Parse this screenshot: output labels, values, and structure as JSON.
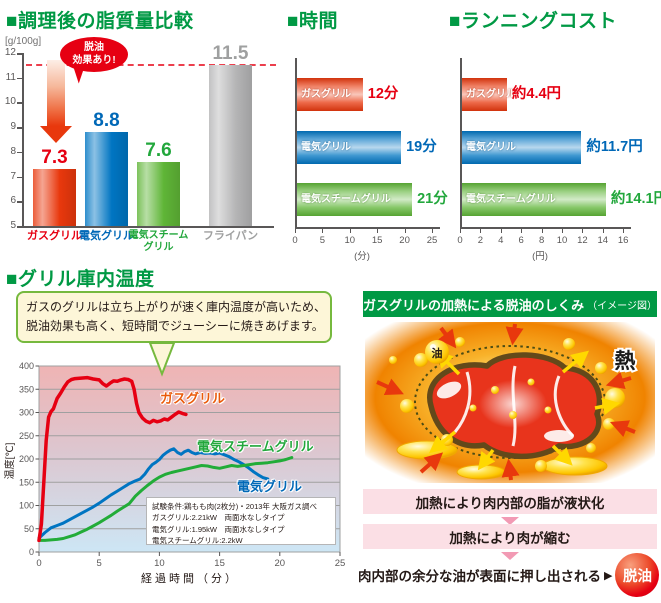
{
  "headers": {
    "fat": "■調理後の脂質量比較",
    "time": "■時間",
    "cost": "■ランニングコスト",
    "temp": "■グリル庫内温度"
  },
  "palette": {
    "title_green": "#009944",
    "red": "#e8380d",
    "blue": "#0075c2",
    "green": "#5fb537",
    "gray": "#b5b5b6",
    "axis_gray": "#595757",
    "step_row_pink": "#fbdfe5",
    "callout_bg": "#fdf6d8",
    "callout_border": "#76b93e"
  },
  "callout": {
    "line1": "ガスのグリルは立ち上がりが速く庫内温度が高いため、",
    "line2": "脱油効果も高く、短時間でジューシーに焼きあげます。"
  },
  "mechanism": {
    "title": "ガスグリルの加熱による脱油のしくみ",
    "title_note": "（イメージ図）",
    "oil_label": "油",
    "heat_label": "熱",
    "step1": "加熱により肉内部の脂が液状化",
    "step2": "加熱により肉が縮む",
    "step3": "肉内部の余分な油が表面に押し出される",
    "arrow_glyph": "▶",
    "result": "脱油"
  },
  "chart_data": [
    {
      "id": "fat",
      "type": "bar",
      "title": "調理後の脂質量比較",
      "unit": "[g/100g]",
      "categories": [
        "ガスグリル",
        "電気グリル",
        "電気スチームグリル",
        "フライパン"
      ],
      "display_categories": [
        "ガスグリル",
        "電気グリル",
        "電気スチーム\nグリル",
        "フライパン"
      ],
      "values": [
        7.3,
        8.8,
        7.6,
        11.5
      ],
      "bar_colors": [
        "#e8380d",
        "#0075c2",
        "#5fb537",
        "#b5b5b6"
      ],
      "text_colors": [
        "#e60012",
        "#0068b7",
        "#22a73c",
        "#9fa0a0"
      ],
      "ylim": [
        5,
        12
      ],
      "yticks": [
        5,
        6,
        7,
        8,
        9,
        10,
        11,
        12
      ],
      "dashed_line_at": 11.5,
      "badge_line1": "脱油",
      "badge_line2": "効果あり!"
    },
    {
      "id": "time",
      "type": "bar-horizontal",
      "title": "時間",
      "categories": [
        "ガスグリル",
        "電気グリル",
        "電気スチームグリル"
      ],
      "values": [
        12,
        19,
        21
      ],
      "value_labels": [
        "12分",
        "19分",
        "21分"
      ],
      "bar_colors": [
        "#e8380d",
        "#0075c2",
        "#5fb537"
      ],
      "text_colors": [
        "#e60012",
        "#0068b7",
        "#22a73c"
      ],
      "xlim": [
        0,
        25
      ],
      "xticks": [
        0,
        5,
        10,
        15,
        20,
        25
      ],
      "xlabel": "(分)"
    },
    {
      "id": "cost",
      "type": "bar-horizontal",
      "title": "ランニングコスト",
      "categories": [
        "ガスグリル",
        "電気グリル",
        "電気スチームグリル"
      ],
      "values": [
        4.4,
        11.7,
        14.1
      ],
      "value_labels": [
        "約4.4円",
        "約11.7円",
        "約14.1円"
      ],
      "bar_colors": [
        "#e8380d",
        "#0075c2",
        "#5fb537"
      ],
      "text_colors": [
        "#e60012",
        "#0068b7",
        "#22a73c"
      ],
      "xlim": [
        0,
        16
      ],
      "xticks": [
        0,
        2,
        4,
        6,
        8,
        10,
        12,
        14,
        16
      ],
      "xlabel": "(円)"
    },
    {
      "id": "temp",
      "type": "line",
      "title": "グリル庫内温度",
      "ylabel": "温度[℃]",
      "xlabel": "経過時間（分）",
      "xlim": [
        0,
        25
      ],
      "ylim": [
        0,
        400
      ],
      "xticks": [
        0,
        5,
        10,
        15,
        20,
        25
      ],
      "yticks": [
        0,
        50,
        100,
        150,
        200,
        250,
        300,
        350,
        400
      ],
      "note_lines": [
        "試験条件:鶏もも肉(2枚分)・2013年 大阪ガス調べ",
        "ガスグリル:2.21kW　両面水なしタイプ",
        "電気グリル:1.95kW　両面水なしタイプ",
        "電気スチームグリル:2.2kW"
      ],
      "series": [
        {
          "name": "ガスグリル",
          "color": "#e60012",
          "label_color": "#ea5a0b",
          "points": [
            [
              0,
              25
            ],
            [
              0.2,
              60
            ],
            [
              0.4,
              150
            ],
            [
              0.6,
              240
            ],
            [
              0.8,
              290
            ],
            [
              1,
              302
            ],
            [
              1.2,
              308
            ],
            [
              1.5,
              330
            ],
            [
              1.8,
              342
            ],
            [
              2.1,
              355
            ],
            [
              2.4,
              366
            ],
            [
              2.7,
              371
            ],
            [
              3,
              373
            ],
            [
              3.5,
              374
            ],
            [
              4,
              375
            ],
            [
              4.5,
              372
            ],
            [
              5,
              370
            ],
            [
              5.3,
              362
            ],
            [
              5.6,
              357
            ],
            [
              5.9,
              363
            ],
            [
              6.2,
              368
            ],
            [
              6.5,
              367
            ],
            [
              6.8,
              370
            ],
            [
              7.1,
              372
            ],
            [
              7.4,
              371
            ],
            [
              7.7,
              367
            ],
            [
              7.9,
              350
            ],
            [
              8.1,
              320
            ],
            [
              8.3,
              300
            ],
            [
              8.6,
              288
            ],
            [
              8.9,
              281
            ],
            [
              9.2,
              278
            ],
            [
              9.5,
              283
            ],
            [
              9.8,
              280
            ],
            [
              10.1,
              282
            ],
            [
              10.4,
              286
            ],
            [
              10.7,
              284
            ],
            [
              11,
              290
            ],
            [
              11.3,
              296
            ],
            [
              11.6,
              301
            ],
            [
              11.9,
              298
            ],
            [
              12.2,
              296
            ]
          ]
        },
        {
          "name": "電気グリル",
          "color": "#0075c2",
          "label_color": "#0068b7",
          "points": [
            [
              0,
              30
            ],
            [
              0.5,
              42
            ],
            [
              1,
              52
            ],
            [
              1.5,
              57
            ],
            [
              2,
              62
            ],
            [
              2.5,
              69
            ],
            [
              3,
              76
            ],
            [
              3.5,
              83
            ],
            [
              4,
              90
            ],
            [
              4.5,
              97
            ],
            [
              5,
              105
            ],
            [
              5.5,
              114
            ],
            [
              6,
              123
            ],
            [
              6.5,
              131
            ],
            [
              7,
              139
            ],
            [
              7.5,
              147
            ],
            [
              8,
              153
            ],
            [
              8.4,
              157
            ],
            [
              8.8,
              168
            ],
            [
              9.1,
              179
            ],
            [
              9.4,
              188
            ],
            [
              9.7,
              193
            ],
            [
              10,
              199
            ],
            [
              10.3,
              208
            ],
            [
              10.6,
              214
            ],
            [
              10.9,
              219
            ],
            [
              11.2,
              222
            ],
            [
              11.5,
              214
            ],
            [
              11.8,
              210
            ],
            [
              12.1,
              216
            ],
            [
              12.4,
              219
            ],
            [
              12.7,
              214
            ],
            [
              13,
              211
            ],
            [
              13.4,
              214
            ],
            [
              13.8,
              212
            ],
            [
              14.2,
              213
            ],
            [
              14.6,
              211
            ],
            [
              15,
              213
            ],
            [
              15.4,
              209
            ],
            [
              15.8,
              205
            ],
            [
              16.2,
              199
            ],
            [
              16.6,
              194
            ],
            [
              17,
              188
            ],
            [
              17.4,
              181
            ],
            [
              17.8,
              173
            ],
            [
              18.2,
              166
            ],
            [
              18.6,
              160
            ],
            [
              19,
              157
            ]
          ]
        },
        {
          "name": "電気スチームグリル",
          "color": "#22ac38",
          "label_color": "#22a73c",
          "points": [
            [
              0,
              25
            ],
            [
              0.5,
              25
            ],
            [
              1,
              26
            ],
            [
              1.5,
              27
            ],
            [
              2,
              29
            ],
            [
              2.5,
              33
            ],
            [
              3,
              37
            ],
            [
              3.5,
              43
            ],
            [
              4,
              49
            ],
            [
              4.5,
              56
            ],
            [
              5,
              63
            ],
            [
              5.5,
              71
            ],
            [
              6,
              79
            ],
            [
              6.5,
              88
            ],
            [
              7,
              96
            ],
            [
              7.5,
              104
            ],
            [
              8,
              120
            ],
            [
              8.5,
              132
            ],
            [
              9,
              143
            ],
            [
              9.5,
              153
            ],
            [
              10,
              161
            ],
            [
              10.5,
              167
            ],
            [
              11,
              171
            ],
            [
              11.5,
              174
            ],
            [
              12,
              177
            ],
            [
              12.5,
              180
            ],
            [
              13,
              183
            ],
            [
              13.5,
              186
            ],
            [
              14,
              185
            ],
            [
              14.5,
              182
            ],
            [
              15,
              180
            ],
            [
              15.5,
              183
            ],
            [
              16,
              186
            ],
            [
              16.5,
              184
            ],
            [
              17,
              186
            ],
            [
              17.5,
              188
            ],
            [
              18,
              190
            ],
            [
              18.5,
              191
            ],
            [
              19,
              192
            ],
            [
              19.5,
              194
            ],
            [
              20,
              196
            ],
            [
              20.5,
              199
            ],
            [
              21,
              203
            ]
          ]
        }
      ]
    }
  ]
}
